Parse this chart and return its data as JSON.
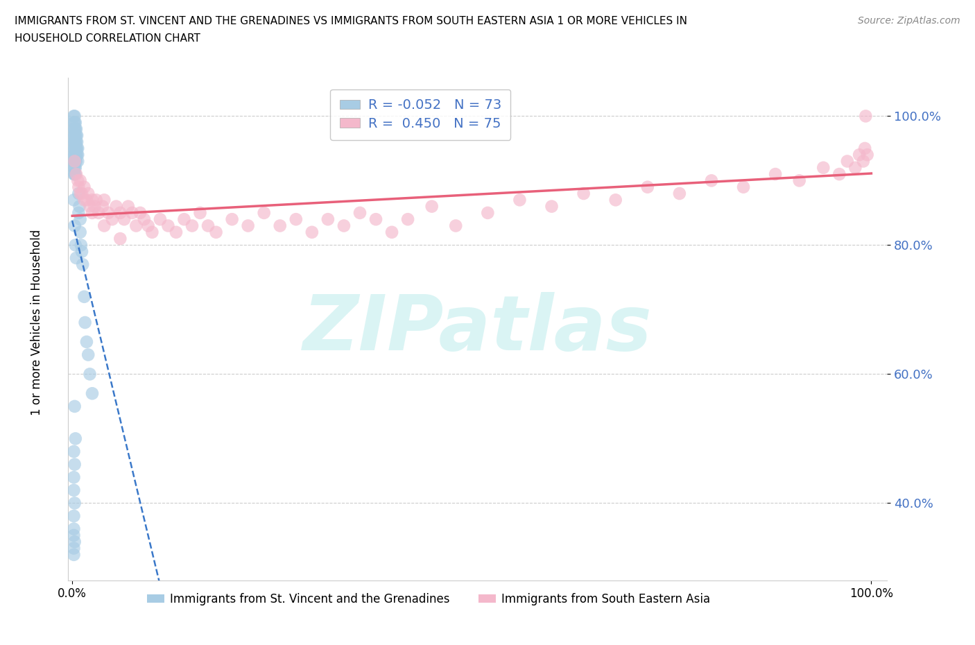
{
  "title_line1": "IMMIGRANTS FROM ST. VINCENT AND THE GRENADINES VS IMMIGRANTS FROM SOUTH EASTERN ASIA 1 OR MORE VEHICLES IN",
  "title_line2": "HOUSEHOLD CORRELATION CHART",
  "source": "Source: ZipAtlas.com",
  "ylabel": "1 or more Vehicles in Household",
  "r_blue": -0.052,
  "n_blue": 73,
  "r_pink": 0.45,
  "n_pink": 75,
  "blue_dot_color": "#a8cce4",
  "pink_dot_color": "#f4b8cb",
  "blue_line_color": "#3a78c9",
  "pink_line_color": "#e8607a",
  "watermark_text": "ZIPatlas",
  "watermark_color": "#daf4f4",
  "ytick_labels": [
    "40.0%",
    "60.0%",
    "80.0%",
    "100.0%"
  ],
  "ytick_values": [
    0.4,
    0.6,
    0.8,
    1.0
  ],
  "yaxis_tick_color": "#4472c4",
  "legend_label_blue": "Immigrants from St. Vincent and the Grenadines",
  "legend_label_pink": "Immigrants from South Eastern Asia",
  "bg_color": "#ffffff",
  "grid_color": "#cccccc",
  "xlim_min": -0.005,
  "xlim_max": 1.02,
  "ylim_min": 0.28,
  "ylim_max": 1.06,
  "blue_x": [
    0.002,
    0.002,
    0.002,
    0.002,
    0.002,
    0.002,
    0.002,
    0.002,
    0.002,
    0.002,
    0.003,
    0.003,
    0.003,
    0.003,
    0.003,
    0.003,
    0.003,
    0.003,
    0.003,
    0.003,
    0.004,
    0.004,
    0.004,
    0.004,
    0.004,
    0.004,
    0.004,
    0.004,
    0.004,
    0.005,
    0.005,
    0.005,
    0.005,
    0.005,
    0.005,
    0.006,
    0.006,
    0.006,
    0.006,
    0.007,
    0.007,
    0.007,
    0.008,
    0.008,
    0.009,
    0.01,
    0.01,
    0.011,
    0.012,
    0.013,
    0.015,
    0.016,
    0.018,
    0.02,
    0.022,
    0.025,
    0.002,
    0.003,
    0.004,
    0.005,
    0.003,
    0.004,
    0.002,
    0.003,
    0.002,
    0.002,
    0.003,
    0.002,
    0.002,
    0.002,
    0.003,
    0.002,
    0.002
  ],
  "blue_y": [
    1.0,
    0.99,
    0.98,
    0.97,
    0.96,
    0.95,
    0.94,
    0.93,
    0.92,
    0.91,
    1.0,
    0.99,
    0.98,
    0.97,
    0.96,
    0.95,
    0.94,
    0.93,
    0.92,
    0.91,
    0.99,
    0.98,
    0.97,
    0.96,
    0.95,
    0.94,
    0.93,
    0.92,
    0.91,
    0.98,
    0.97,
    0.96,
    0.95,
    0.94,
    0.93,
    0.97,
    0.96,
    0.95,
    0.94,
    0.95,
    0.94,
    0.93,
    0.88,
    0.85,
    0.86,
    0.84,
    0.82,
    0.8,
    0.79,
    0.77,
    0.72,
    0.68,
    0.65,
    0.63,
    0.6,
    0.57,
    0.87,
    0.83,
    0.8,
    0.78,
    0.55,
    0.5,
    0.48,
    0.46,
    0.44,
    0.42,
    0.4,
    0.38,
    0.36,
    0.35,
    0.34,
    0.33,
    0.32
  ],
  "pink_x": [
    0.003,
    0.005,
    0.007,
    0.008,
    0.01,
    0.012,
    0.015,
    0.018,
    0.02,
    0.022,
    0.025,
    0.028,
    0.03,
    0.033,
    0.038,
    0.04,
    0.045,
    0.05,
    0.055,
    0.06,
    0.065,
    0.07,
    0.075,
    0.08,
    0.085,
    0.09,
    0.095,
    0.1,
    0.11,
    0.12,
    0.13,
    0.14,
    0.15,
    0.16,
    0.17,
    0.18,
    0.2,
    0.22,
    0.24,
    0.26,
    0.28,
    0.3,
    0.32,
    0.34,
    0.36,
    0.38,
    0.4,
    0.42,
    0.45,
    0.48,
    0.52,
    0.56,
    0.6,
    0.64,
    0.68,
    0.72,
    0.76,
    0.8,
    0.84,
    0.88,
    0.91,
    0.94,
    0.96,
    0.97,
    0.98,
    0.985,
    0.99,
    0.992,
    0.995,
    0.01,
    0.015,
    0.025,
    0.04,
    0.06,
    0.993
  ],
  "pink_y": [
    0.93,
    0.91,
    0.9,
    0.89,
    0.9,
    0.88,
    0.89,
    0.87,
    0.88,
    0.86,
    0.87,
    0.86,
    0.87,
    0.85,
    0.86,
    0.87,
    0.85,
    0.84,
    0.86,
    0.85,
    0.84,
    0.86,
    0.85,
    0.83,
    0.85,
    0.84,
    0.83,
    0.82,
    0.84,
    0.83,
    0.82,
    0.84,
    0.83,
    0.85,
    0.83,
    0.82,
    0.84,
    0.83,
    0.85,
    0.83,
    0.84,
    0.82,
    0.84,
    0.83,
    0.85,
    0.84,
    0.82,
    0.84,
    0.86,
    0.83,
    0.85,
    0.87,
    0.86,
    0.88,
    0.87,
    0.89,
    0.88,
    0.9,
    0.89,
    0.91,
    0.9,
    0.92,
    0.91,
    0.93,
    0.92,
    0.94,
    0.93,
    0.95,
    0.94,
    0.88,
    0.87,
    0.85,
    0.83,
    0.81,
    1.0
  ]
}
